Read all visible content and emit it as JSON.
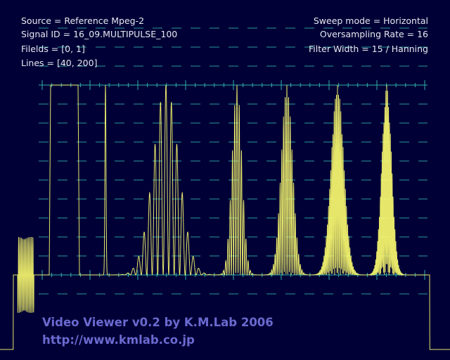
{
  "info_left": [
    "Source = Reference Mpeg-2",
    "Signal ID = 16_09.MULTIPULSE_100",
    "Filelds = [0, 1]",
    "Lines = [40, 200]"
  ],
  "info_right": [
    "Sweep mode = Horizontal",
    "Oversampling Rate = 16",
    "Filter Width = 15 / Hanning"
  ],
  "footer": {
    "title": "Video Viewer v0.2 by K.M.Lab 2006",
    "url": "http://www.kmlab.co.jp"
  }
}
